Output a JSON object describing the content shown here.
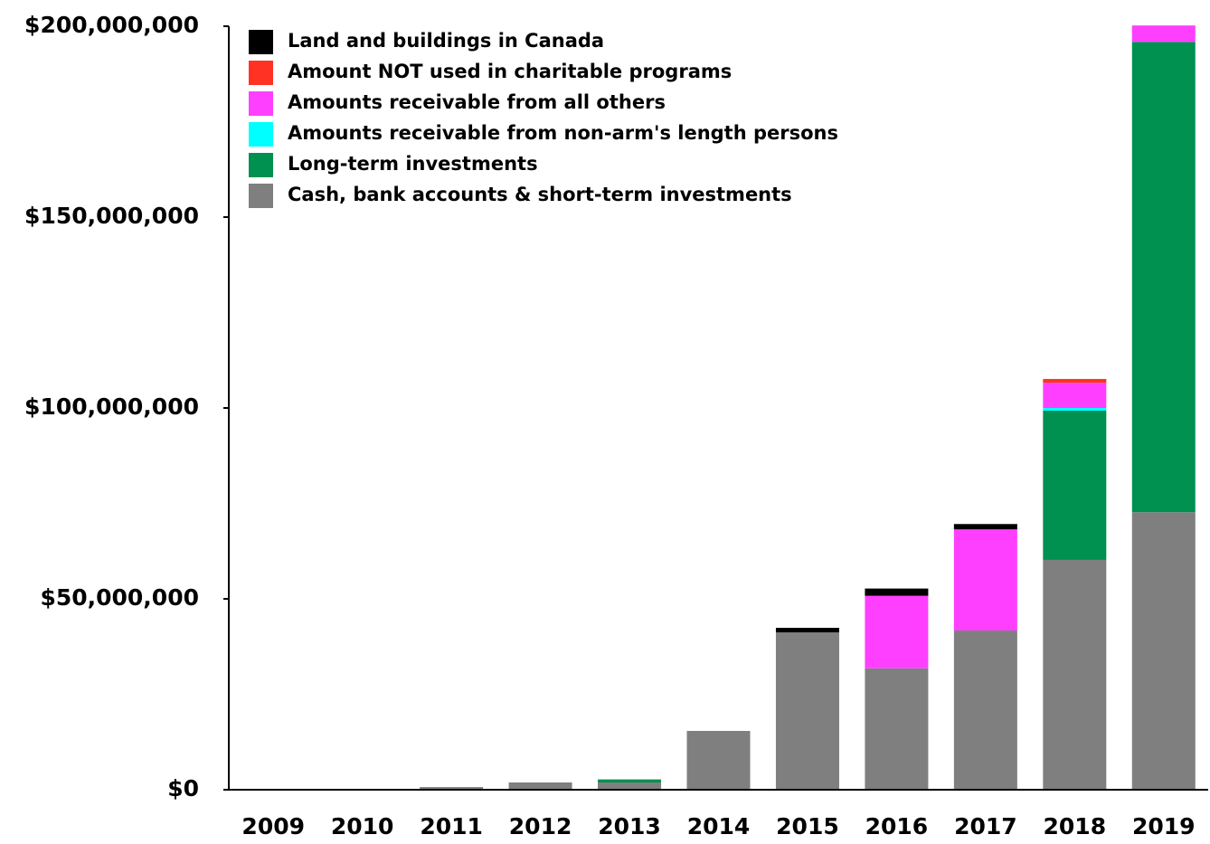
{
  "chart_data": {
    "type": "stacked_bar",
    "categories": [
      "2009",
      "2010",
      "2011",
      "2012",
      "2013",
      "2014",
      "2015",
      "2016",
      "2017",
      "2018",
      "2019"
    ],
    "series": [
      {
        "name": "Cash, bank accounts & short-term investments",
        "color": "#7f7f7f",
        "values": [
          0,
          0,
          700000,
          1900000,
          1900000,
          15400000,
          41200000,
          31800000,
          41700000,
          60200000,
          72700000
        ]
      },
      {
        "name": "Long-term investments",
        "color": "#00904f",
        "values": [
          0,
          0,
          0,
          0,
          800000,
          0,
          0,
          0,
          0,
          39100000,
          123200000
        ]
      },
      {
        "name": "Amounts receivable from non-arm's length persons",
        "color": "#00ffff",
        "values": [
          0,
          0,
          0,
          0,
          0,
          0,
          0,
          0,
          0,
          700000,
          0
        ]
      },
      {
        "name": "Amounts receivable from all others",
        "color": "#ff3fff",
        "values": [
          0,
          0,
          0,
          0,
          0,
          0,
          0,
          19000000,
          26500000,
          6600000,
          4300000
        ]
      },
      {
        "name": "Amount NOT used in charitable programs",
        "color": "#ff3223",
        "values": [
          0,
          0,
          0,
          0,
          0,
          0,
          0,
          0,
          0,
          1000000,
          0
        ]
      },
      {
        "name": "Land and buildings in Canada",
        "color": "#000000",
        "values": [
          0,
          0,
          0,
          0,
          0,
          0,
          1200000,
          1900000,
          1400000,
          0,
          0
        ]
      }
    ],
    "ylim": [
      0,
      200000000
    ],
    "yticks": [
      {
        "value": 0,
        "label": "$0"
      },
      {
        "value": 50000000,
        "label": "$50,000,000"
      },
      {
        "value": 100000000,
        "label": "$100,000,000"
      },
      {
        "value": 150000000,
        "label": "$150,000,000"
      },
      {
        "value": 200000000,
        "label": "$200,000,000"
      }
    ],
    "legend": "upper-left"
  }
}
